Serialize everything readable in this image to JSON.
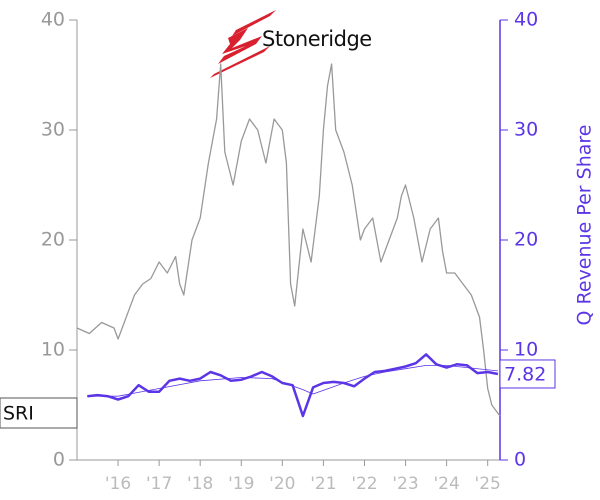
{
  "chart_data": {
    "type": "line",
    "logo": "Stoneridge",
    "ticker": "SRI",
    "y2_label": "Q Revenue Per Share",
    "xlim": [
      2015.0,
      2025.3
    ],
    "xticks": [
      {
        "value": 2016,
        "label": "'16"
      },
      {
        "value": 2017,
        "label": "'17"
      },
      {
        "value": 2018,
        "label": "'18"
      },
      {
        "value": 2019,
        "label": "'19"
      },
      {
        "value": 2020,
        "label": "'20"
      },
      {
        "value": 2021,
        "label": "'21"
      },
      {
        "value": 2022,
        "label": "'22"
      },
      {
        "value": 2023,
        "label": "'23"
      },
      {
        "value": 2024,
        "label": "'24"
      },
      {
        "value": 2025,
        "label": "'25"
      }
    ],
    "ylim": [
      0,
      40
    ],
    "yticks": [
      0,
      10,
      20,
      30,
      40
    ],
    "y2lim": [
      0,
      40
    ],
    "y2ticks": [
      0,
      10,
      20,
      30,
      40
    ],
    "series": [
      {
        "color": "#999999",
        "axis": "y",
        "x": [
          2015.0,
          2015.3,
          2015.6,
          2015.9,
          2016.0,
          2016.2,
          2016.4,
          2016.6,
          2016.8,
          2017.0,
          2017.2,
          2017.4,
          2017.5,
          2017.6,
          2017.8,
          2018.0,
          2018.2,
          2018.4,
          2018.5,
          2018.6,
          2018.8,
          2019.0,
          2019.2,
          2019.4,
          2019.6,
          2019.8,
          2020.0,
          2020.1,
          2020.2,
          2020.3,
          2020.5,
          2020.7,
          2020.9,
          2021.0,
          2021.1,
          2021.2,
          2021.3,
          2021.5,
          2021.7,
          2021.9,
          2022.0,
          2022.2,
          2022.4,
          2022.6,
          2022.8,
          2022.9,
          2023.0,
          2023.2,
          2023.4,
          2023.6,
          2023.8,
          2023.9,
          2024.0,
          2024.2,
          2024.4,
          2024.6,
          2024.8,
          2024.9,
          2025.0,
          2025.1,
          2025.2,
          2025.3
        ],
        "values": [
          12,
          11.5,
          12.5,
          12,
          11,
          13,
          15,
          16,
          16.5,
          18,
          17,
          18.5,
          16,
          15,
          20,
          22,
          27,
          31,
          36,
          28,
          25,
          29,
          31,
          30,
          27,
          31,
          30,
          27,
          16,
          14,
          21,
          18,
          24,
          30,
          34,
          36,
          30,
          28,
          25,
          20,
          21,
          22,
          18,
          20,
          22,
          24,
          25,
          22,
          18,
          21,
          22,
          19,
          17,
          17,
          16,
          15,
          13,
          10,
          6.5,
          5,
          4.5,
          4
        ]
      },
      {
        "color": "#5b35e6",
        "axis": "y2",
        "x": [
          2015.25,
          2015.5,
          2015.75,
          2016.0,
          2016.25,
          2016.5,
          2016.75,
          2017.0,
          2017.25,
          2017.5,
          2017.75,
          2018.0,
          2018.25,
          2018.5,
          2018.75,
          2019.0,
          2019.25,
          2019.5,
          2019.75,
          2020.0,
          2020.25,
          2020.5,
          2020.75,
          2021.0,
          2021.25,
          2021.5,
          2021.75,
          2022.0,
          2022.25,
          2022.5,
          2022.75,
          2023.0,
          2023.25,
          2023.5,
          2023.75,
          2024.0,
          2024.25,
          2024.5,
          2024.75,
          2025.0,
          2025.25
        ],
        "values": [
          5.8,
          5.9,
          5.8,
          5.5,
          5.8,
          6.8,
          6.2,
          6.2,
          7.2,
          7.4,
          7.2,
          7.4,
          8.0,
          7.7,
          7.2,
          7.3,
          7.6,
          8.0,
          7.6,
          7.0,
          6.8,
          4.0,
          6.6,
          7.0,
          7.1,
          7.0,
          6.7,
          7.4,
          8.0,
          8.1,
          8.3,
          8.5,
          8.8,
          9.6,
          8.7,
          8.4,
          8.7,
          8.6,
          7.9,
          8.0,
          7.82
        ]
      },
      {
        "color": "#5b35e6",
        "axis": "y2",
        "x": [
          2015.25,
          2016.0,
          2017.0,
          2018.0,
          2019.0,
          2019.75,
          2020.5,
          2020.75,
          2021.5,
          2022.0,
          2022.5,
          2023.0,
          2023.5,
          2024.0,
          2024.5,
          2025.25
        ],
        "values": [
          5.8,
          5.8,
          6.5,
          7.2,
          7.5,
          7.4,
          6.4,
          6.0,
          7.0,
          7.6,
          8.0,
          8.3,
          8.6,
          8.6,
          8.4,
          8.1
        ]
      }
    ]
  }
}
